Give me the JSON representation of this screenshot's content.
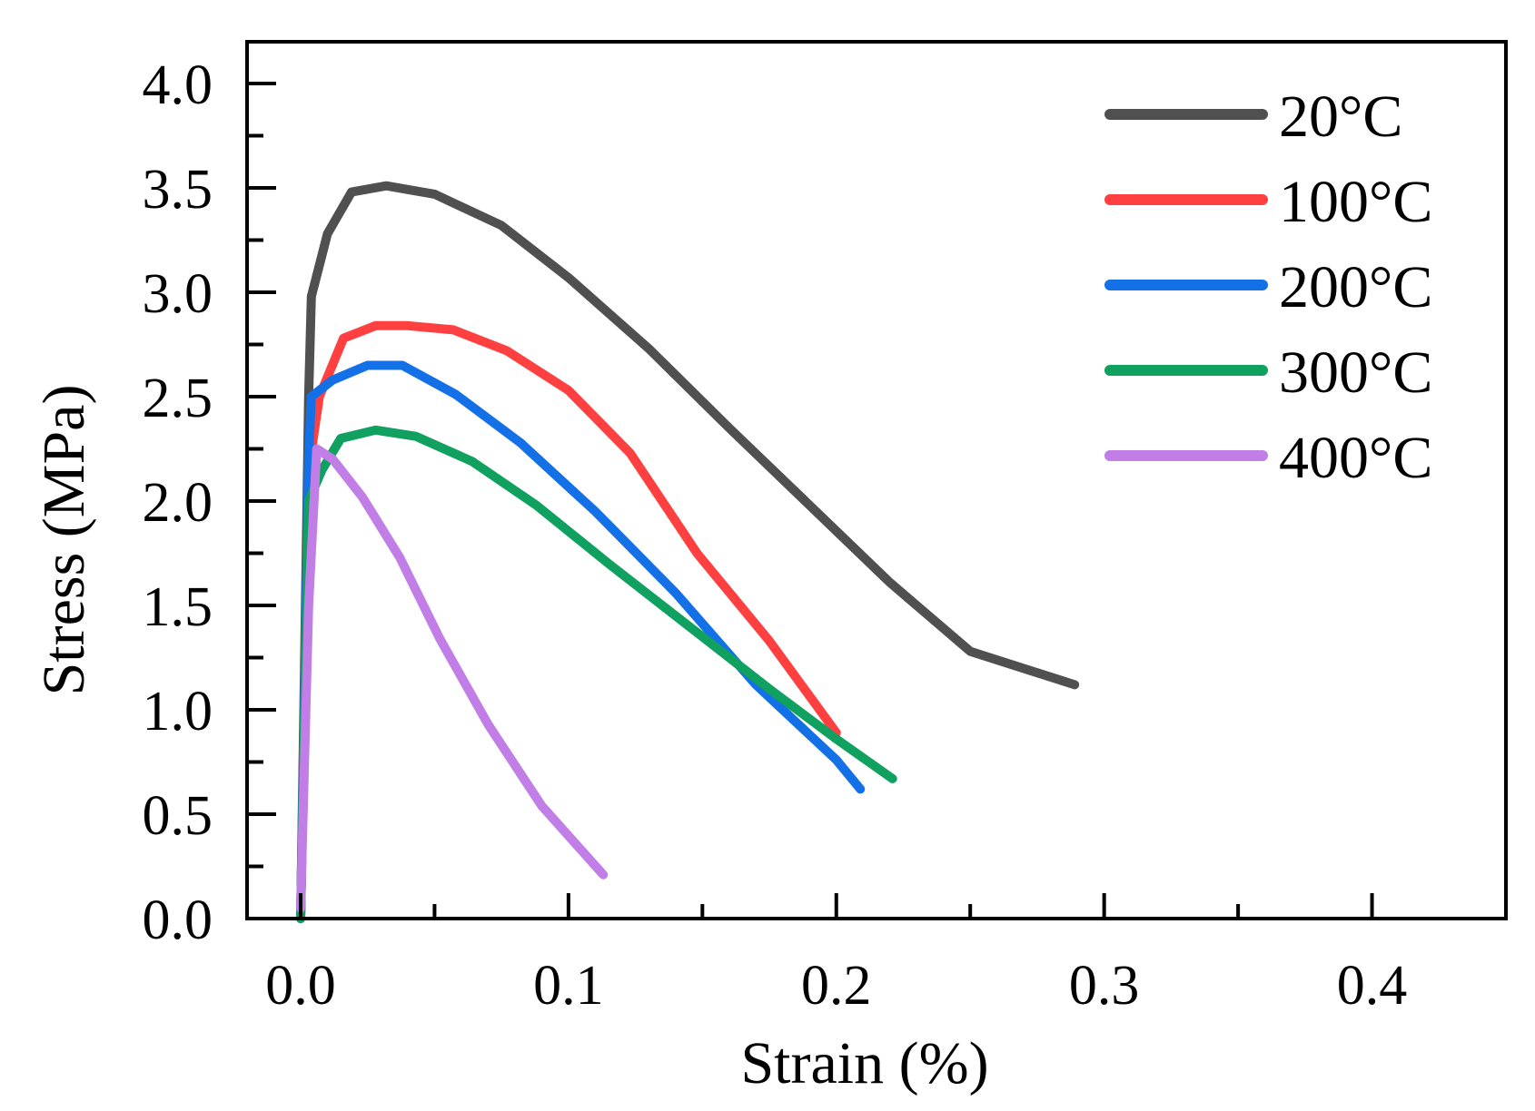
{
  "chart_data": {
    "type": "line",
    "title": "",
    "xlabel": "Strain (%)",
    "ylabel": "Stress (MPa)",
    "xlim": [
      -0.02,
      0.45
    ],
    "ylim": [
      0.0,
      4.2
    ],
    "x_ticks": [
      0.0,
      0.1,
      0.2,
      0.3,
      0.4
    ],
    "x_tick_labels": [
      "0.0",
      "0.1",
      "0.2",
      "0.3",
      "0.4"
    ],
    "y_ticks": [
      0.0,
      0.5,
      1.0,
      1.5,
      2.0,
      2.5,
      3.0,
      3.5,
      4.0
    ],
    "y_tick_labels": [
      "0.0",
      "0.5",
      "1.0",
      "1.5",
      "2.0",
      "2.5",
      "3.0",
      "3.5",
      "4.0"
    ],
    "x_minor_step": 0.05,
    "y_minor_step": 0.25,
    "grid": false,
    "legend_position": "top-right",
    "series": [
      {
        "name": "20°C",
        "color": "#505050",
        "x": [
          0.0,
          0.003,
          0.004,
          0.01,
          0.019,
          0.032,
          0.05,
          0.075,
          0.1,
          0.13,
          0.16,
          0.19,
          0.22,
          0.25,
          0.289
        ],
        "y": [
          0.0,
          2.5,
          2.98,
          3.28,
          3.48,
          3.51,
          3.47,
          3.32,
          3.07,
          2.73,
          2.35,
          1.98,
          1.61,
          1.28,
          1.12
        ]
      },
      {
        "name": "100°C",
        "color": "#ff4040",
        "x": [
          0.0,
          0.003,
          0.007,
          0.016,
          0.028,
          0.04,
          0.057,
          0.077,
          0.1,
          0.123,
          0.148,
          0.175,
          0.2
        ],
        "y": [
          0.0,
          2.15,
          2.5,
          2.78,
          2.84,
          2.84,
          2.82,
          2.72,
          2.53,
          2.23,
          1.75,
          1.33,
          0.89
        ]
      },
      {
        "name": "200°C",
        "color": "#1470e6",
        "x": [
          0.0,
          0.003,
          0.004,
          0.012,
          0.025,
          0.038,
          0.058,
          0.082,
          0.11,
          0.14,
          0.17,
          0.2,
          0.209
        ],
        "y": [
          0.0,
          2.2,
          2.5,
          2.58,
          2.65,
          2.65,
          2.51,
          2.28,
          1.95,
          1.56,
          1.12,
          0.76,
          0.62
        ]
      },
      {
        "name": "300°C",
        "color": "#10a060",
        "x": [
          0.0,
          0.003,
          0.008,
          0.015,
          0.028,
          0.043,
          0.064,
          0.088,
          0.115,
          0.145,
          0.175,
          0.2,
          0.221
        ],
        "y": [
          0.0,
          2.0,
          2.15,
          2.3,
          2.34,
          2.31,
          2.19,
          1.98,
          1.7,
          1.4,
          1.1,
          0.86,
          0.67
        ]
      },
      {
        "name": "400°C",
        "color": "#c07ee6",
        "x": [
          0.0,
          0.003,
          0.006,
          0.012,
          0.023,
          0.037,
          0.052,
          0.07,
          0.09,
          0.113
        ],
        "y": [
          0.05,
          1.5,
          2.25,
          2.2,
          2.02,
          1.73,
          1.34,
          0.93,
          0.54,
          0.21
        ]
      }
    ]
  }
}
